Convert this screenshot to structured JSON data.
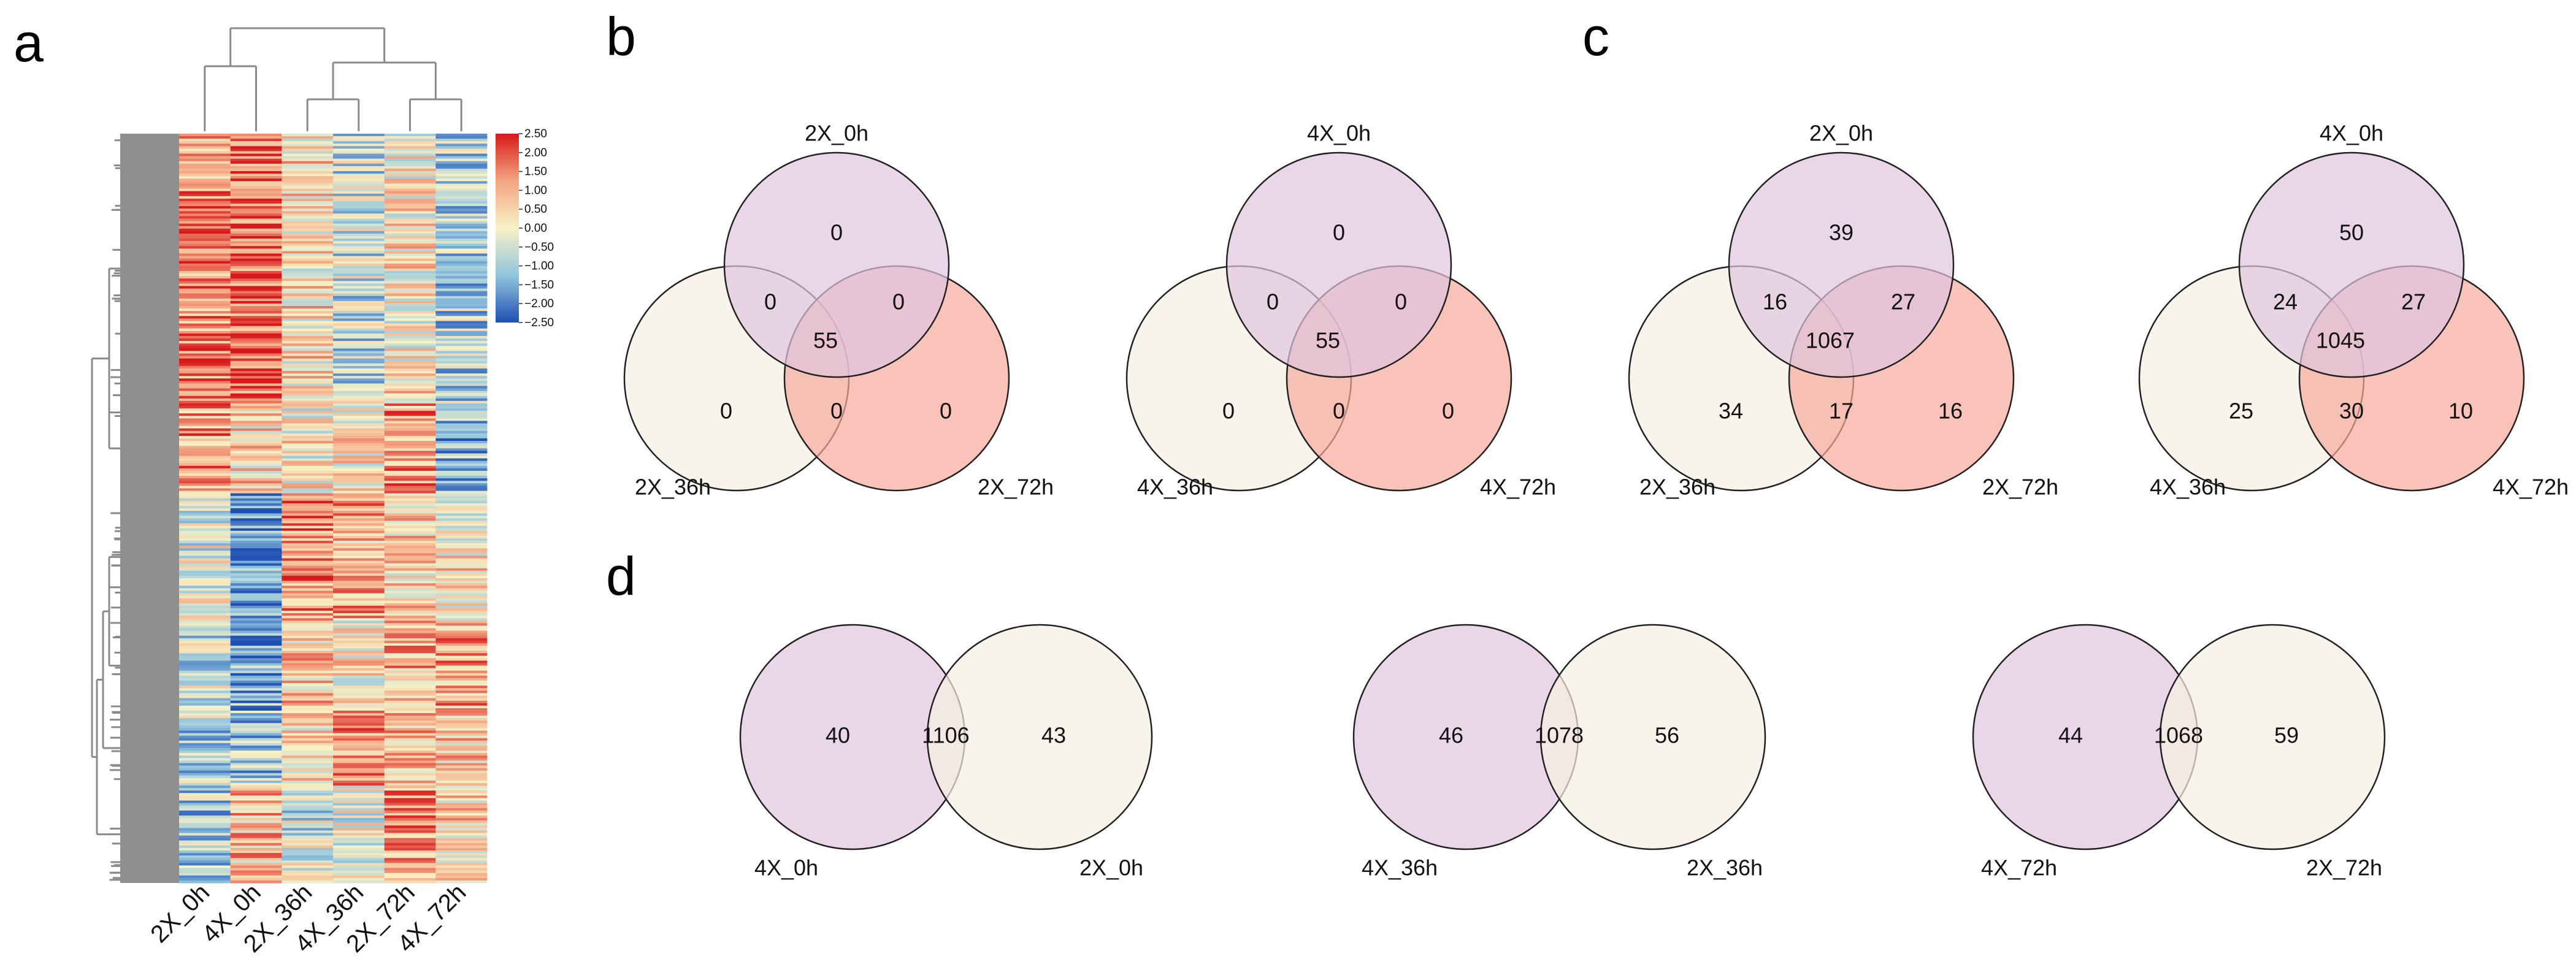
{
  "panel_labels": {
    "a": "a",
    "b": "b",
    "c": "c",
    "d": "d"
  },
  "colors": {
    "purple": "#e0c4de",
    "cream": "#f7f0e3",
    "salmon": "#f7a99c",
    "tree": "#8a8a8a"
  },
  "chart_data": [
    {
      "type": "heatmap",
      "panel": "a",
      "columns": [
        "2X_0h",
        "4X_0h",
        "2X_36h",
        "4X_36h",
        "2X_72h",
        "4X_72h"
      ],
      "color_scale": {
        "min": -2.5,
        "max": 2.5,
        "ticks": [
          "2.50",
          "2.00",
          "1.50",
          "1.00",
          "0.50",
          "0.00",
          "−0.50",
          "−1.00",
          "−1.50",
          "−2.00",
          "−2.50"
        ]
      },
      "column_dendrogram": "((2X_0h,4X_0h),((2X_36h,4X_36h),(2X_72h,4X_72h)))"
    },
    {
      "type": "venn3",
      "panel": "b",
      "sets": [
        "2X_0h",
        "2X_36h",
        "2X_72h"
      ],
      "regions": {
        "top_only": "0",
        "left_only": "0",
        "right_only": "0",
        "top_left": "0",
        "top_right": "0",
        "left_right": "0",
        "center": "55"
      }
    },
    {
      "type": "venn3",
      "panel": "b",
      "sets": [
        "4X_0h",
        "4X_36h",
        "4X_72h"
      ],
      "regions": {
        "top_only": "0",
        "left_only": "0",
        "right_only": "0",
        "top_left": "0",
        "top_right": "0",
        "left_right": "0",
        "center": "55"
      }
    },
    {
      "type": "venn3",
      "panel": "c",
      "sets": [
        "2X_0h",
        "2X_36h",
        "2X_72h"
      ],
      "regions": {
        "top_only": "39",
        "left_only": "34",
        "right_only": "16",
        "top_left": "16",
        "top_right": "27",
        "left_right": "17",
        "center": "1067"
      }
    },
    {
      "type": "venn3",
      "panel": "c",
      "sets": [
        "4X_0h",
        "4X_36h",
        "4X_72h"
      ],
      "regions": {
        "top_only": "50",
        "left_only": "25",
        "right_only": "10",
        "top_left": "24",
        "top_right": "27",
        "left_right": "30",
        "center": "1045"
      }
    },
    {
      "type": "venn2",
      "panel": "d",
      "sets": [
        "4X_0h",
        "2X_0h"
      ],
      "regions": {
        "left_only": "40",
        "shared": "1106",
        "right_only": "43"
      }
    },
    {
      "type": "venn2",
      "panel": "d",
      "sets": [
        "4X_36h",
        "2X_36h"
      ],
      "regions": {
        "left_only": "46",
        "shared": "1078",
        "right_only": "56"
      }
    },
    {
      "type": "venn2",
      "panel": "d",
      "sets": [
        "4X_72h",
        "2X_72h"
      ],
      "regions": {
        "left_only": "44",
        "shared": "1068",
        "right_only": "59"
      }
    }
  ]
}
